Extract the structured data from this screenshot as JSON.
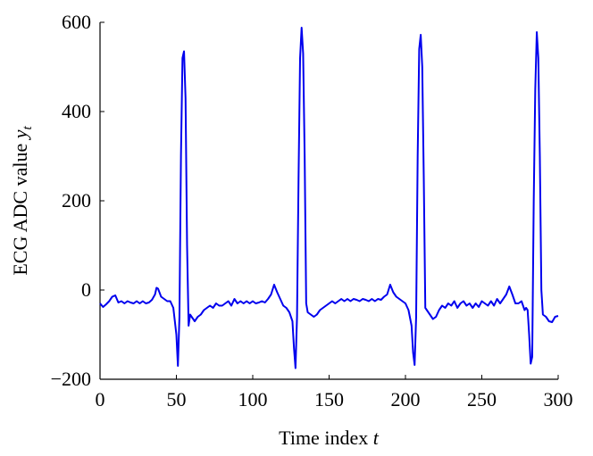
{
  "chart_data": {
    "type": "line",
    "xlabel": "Time index",
    "xlabel_var": "t",
    "ylabel": "ECG ADC value",
    "ylabel_var": "y",
    "ylabel_sub": "t",
    "xlim": [
      0,
      300
    ],
    "xticks": [
      0,
      50,
      100,
      150,
      200,
      250,
      300
    ],
    "ylim": [
      -200,
      600
    ],
    "yticks": [
      {
        "value": -200,
        "label": "−200"
      },
      0,
      200,
      400,
      600
    ],
    "color": "#0000ee",
    "x": [
      0,
      2,
      4,
      6,
      8,
      10,
      12,
      14,
      16,
      18,
      20,
      22,
      24,
      26,
      28,
      30,
      32,
      34,
      36,
      37,
      38,
      40,
      42,
      44,
      46,
      48,
      50,
      51,
      52,
      53,
      54,
      55,
      56,
      57,
      58,
      59,
      60,
      62,
      64,
      66,
      68,
      70,
      72,
      74,
      76,
      78,
      80,
      82,
      84,
      86,
      88,
      90,
      92,
      94,
      96,
      98,
      100,
      102,
      104,
      106,
      108,
      110,
      112,
      114,
      116,
      118,
      120,
      122,
      124,
      126,
      127,
      128,
      129,
      130,
      131,
      132,
      133,
      134,
      135,
      136,
      138,
      140,
      142,
      144,
      146,
      148,
      150,
      152,
      154,
      156,
      158,
      160,
      162,
      164,
      166,
      168,
      170,
      172,
      174,
      176,
      178,
      180,
      182,
      184,
      186,
      188,
      190,
      192,
      194,
      196,
      198,
      200,
      202,
      204,
      205,
      206,
      207,
      208,
      209,
      210,
      211,
      212,
      213,
      214,
      216,
      218,
      220,
      222,
      224,
      226,
      228,
      230,
      232,
      234,
      236,
      238,
      240,
      242,
      244,
      246,
      248,
      250,
      252,
      254,
      256,
      258,
      260,
      262,
      264,
      266,
      268,
      270,
      272,
      274,
      276,
      278,
      279,
      280,
      281,
      282,
      283,
      284,
      285,
      286,
      287,
      288,
      289,
      290,
      292,
      294,
      296,
      298,
      300
    ],
    "values": [
      -30,
      -38,
      -32,
      -25,
      -15,
      -12,
      -28,
      -25,
      -30,
      -25,
      -28,
      -30,
      -25,
      -30,
      -25,
      -30,
      -28,
      -22,
      -10,
      5,
      3,
      -15,
      -20,
      -25,
      -25,
      -40,
      -100,
      -170,
      -60,
      300,
      520,
      535,
      430,
      100,
      -80,
      -55,
      -60,
      -70,
      -60,
      -55,
      -45,
      -40,
      -35,
      -40,
      -30,
      -35,
      -35,
      -30,
      -25,
      -35,
      -20,
      -30,
      -25,
      -30,
      -25,
      -30,
      -25,
      -30,
      -28,
      -25,
      -28,
      -20,
      -10,
      12,
      -5,
      -20,
      -35,
      -40,
      -50,
      -70,
      -130,
      -175,
      -60,
      250,
      520,
      588,
      530,
      300,
      -30,
      -50,
      -55,
      -60,
      -55,
      -45,
      -40,
      -35,
      -30,
      -25,
      -30,
      -25,
      -20,
      -25,
      -20,
      -25,
      -20,
      -22,
      -25,
      -20,
      -22,
      -25,
      -20,
      -25,
      -20,
      -22,
      -15,
      -10,
      12,
      -5,
      -15,
      -20,
      -25,
      -30,
      -45,
      -80,
      -140,
      -168,
      -60,
      300,
      540,
      572,
      500,
      250,
      -40,
      -45,
      -55,
      -65,
      -60,
      -45,
      -35,
      -40,
      -30,
      -35,
      -25,
      -40,
      -30,
      -25,
      -35,
      -30,
      -40,
      -30,
      -38,
      -25,
      -30,
      -35,
      -25,
      -35,
      -20,
      -30,
      -20,
      -10,
      8,
      -10,
      -30,
      -30,
      -25,
      -45,
      -40,
      -45,
      -100,
      -165,
      -150,
      200,
      450,
      578,
      520,
      300,
      0,
      -55,
      -60,
      -70,
      -72,
      -60,
      -58
    ]
  }
}
